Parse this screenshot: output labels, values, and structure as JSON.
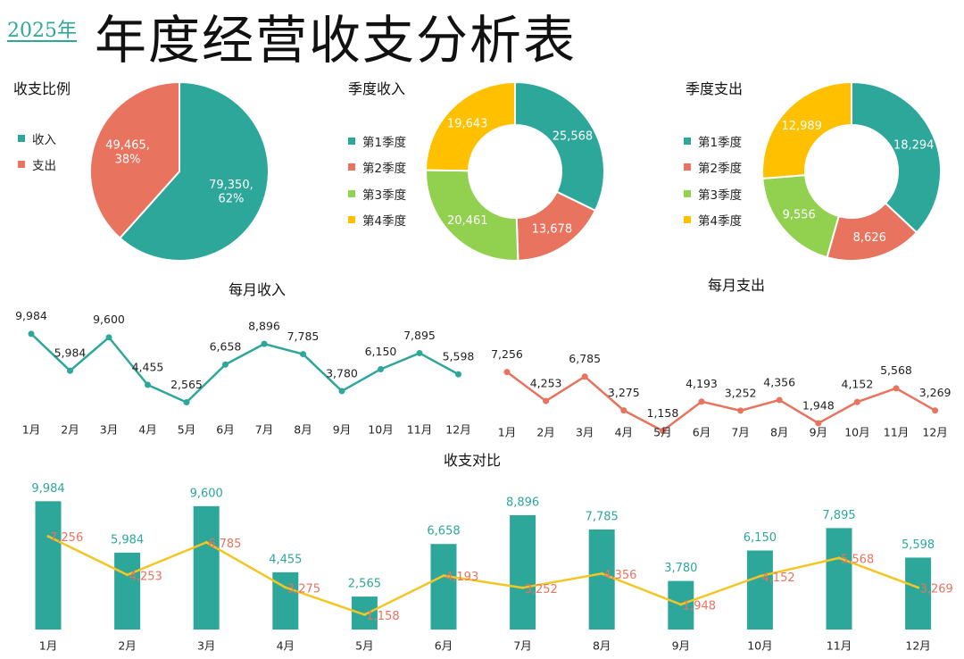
{
  "header": {
    "year": "2025年",
    "title": "年度经营收支分析表"
  },
  "colors": {
    "teal": "#2ea79b",
    "red": "#e8735f",
    "green": "#92d050",
    "yellow": "#ffc000",
    "line_yellow": "#f3c623"
  },
  "chart_data": [
    {
      "id": "ratio",
      "type": "pie",
      "title": "收支比例",
      "categories": [
        "收入",
        "支出"
      ],
      "values": [
        79350,
        49465
      ],
      "labels": [
        "79,350,\n62%",
        "49,465,\n38%"
      ]
    },
    {
      "id": "q_income",
      "type": "pie",
      "donut": true,
      "title": "季度收入",
      "categories": [
        "第1季度",
        "第2季度",
        "第3季度",
        "第4季度"
      ],
      "values": [
        25568,
        13678,
        20461,
        19643
      ],
      "labels": [
        "25,568",
        "13,678",
        "20,461",
        "19,643"
      ]
    },
    {
      "id": "q_expense",
      "type": "pie",
      "donut": true,
      "title": "季度支出",
      "categories": [
        "第1季度",
        "第2季度",
        "第3季度",
        "第4季度"
      ],
      "values": [
        18294,
        8626,
        9556,
        12989
      ],
      "labels": [
        "18,294",
        "8,626",
        "9,556",
        "12,989"
      ]
    },
    {
      "id": "m_income",
      "type": "line",
      "title": "每月收入",
      "categories": [
        "1月",
        "2月",
        "3月",
        "4月",
        "5月",
        "6月",
        "7月",
        "8月",
        "9月",
        "10月",
        "11月",
        "12月"
      ],
      "values": [
        9984,
        5984,
        9600,
        4455,
        2565,
        6658,
        8896,
        7785,
        3780,
        6150,
        7895,
        5598
      ],
      "labels": [
        "9,984",
        "5,984",
        "9,600",
        "4,455",
        "2,565",
        "6,658",
        "8,896",
        "7,785",
        "3,780",
        "6,150",
        "7,895",
        "5,598"
      ]
    },
    {
      "id": "m_expense",
      "type": "line",
      "title": "每月支出",
      "categories": [
        "1月",
        "2月",
        "3月",
        "4月",
        "5月",
        "6月",
        "7月",
        "8月",
        "9月",
        "10月",
        "11月",
        "12月"
      ],
      "values": [
        7256,
        4253,
        6785,
        3275,
        1158,
        4193,
        3252,
        4356,
        1948,
        4152,
        5568,
        3269
      ],
      "labels": [
        "7,256",
        "4,253",
        "6,785",
        "3,275",
        "1,158",
        "4,193",
        "3,252",
        "4,356",
        "1,948",
        "4,152",
        "5,568",
        "3,269"
      ]
    },
    {
      "id": "compare",
      "type": "bar",
      "title": "收支对比",
      "categories": [
        "1月",
        "2月",
        "3月",
        "4月",
        "5月",
        "6月",
        "7月",
        "8月",
        "9月",
        "10月",
        "11月",
        "12月"
      ],
      "series": [
        {
          "name": "收入",
          "type": "bar",
          "values": [
            9984,
            5984,
            9600,
            4455,
            2565,
            6658,
            8896,
            7785,
            3780,
            6150,
            7895,
            5598
          ],
          "labels": [
            "9,984",
            "5,984",
            "9,600",
            "4,455",
            "2,565",
            "6,658",
            "8,896",
            "7,785",
            "3,780",
            "6,150",
            "7,895",
            "5,598"
          ]
        },
        {
          "name": "支出",
          "type": "line",
          "values": [
            7256,
            4253,
            6785,
            3275,
            1158,
            4193,
            3252,
            4356,
            1948,
            4152,
            5568,
            3269
          ],
          "labels": [
            "7,256",
            "4,253",
            "6,785",
            "3,275",
            "1,158",
            "4,193",
            "3,252",
            "4,356",
            "1,948",
            "4,152",
            "5,568",
            "3,269"
          ]
        }
      ]
    }
  ]
}
